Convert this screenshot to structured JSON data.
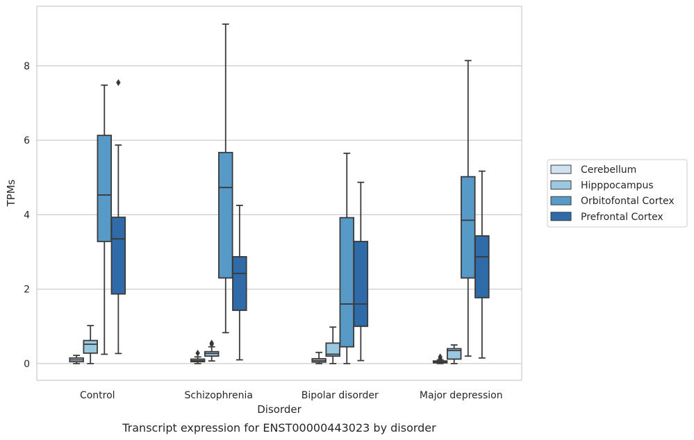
{
  "caption": "Transcript expression for ENST00000443023 by disorder",
  "chart_data": {
    "type": "box",
    "xlabel": "Disorder",
    "ylabel": "TPMs",
    "ylim": [
      -0.45,
      9.6
    ],
    "yticks": [
      0,
      2,
      4,
      6,
      8
    ],
    "grid": "horizontal",
    "legend_position": "right",
    "categories": [
      "Control",
      "Schizophrenia",
      "Bipolar disorder",
      "Major depression"
    ],
    "series": [
      {
        "name": "Cerebellum",
        "color": "#d0e2f2",
        "boxes": [
          {
            "whisker_low": 0.0,
            "q1": 0.05,
            "median": 0.1,
            "q3": 0.15,
            "whisker_high": 0.22,
            "outliers": []
          },
          {
            "whisker_low": 0.0,
            "q1": 0.05,
            "median": 0.08,
            "q3": 0.12,
            "whisker_high": 0.18,
            "outliers": [
              0.28
            ]
          },
          {
            "whisker_low": 0.0,
            "q1": 0.04,
            "median": 0.08,
            "q3": 0.13,
            "whisker_high": 0.3,
            "outliers": []
          },
          {
            "whisker_low": 0.0,
            "q1": 0.02,
            "median": 0.04,
            "q3": 0.07,
            "whisker_high": 0.1,
            "outliers": [
              0.14,
              0.18
            ]
          }
        ]
      },
      {
        "name": "Hipppocampus",
        "color": "#9ac8e0",
        "boxes": [
          {
            "whisker_low": 0.0,
            "q1": 0.28,
            "median": 0.52,
            "q3": 0.62,
            "whisker_high": 1.02,
            "outliers": []
          },
          {
            "whisker_low": 0.07,
            "q1": 0.2,
            "median": 0.27,
            "q3": 0.32,
            "whisker_high": 0.45,
            "outliers": [
              0.52,
              0.55
            ]
          },
          {
            "whisker_low": 0.0,
            "q1": 0.2,
            "median": 0.25,
            "q3": 0.55,
            "whisker_high": 0.98,
            "outliers": []
          },
          {
            "whisker_low": 0.0,
            "q1": 0.12,
            "median": 0.35,
            "q3": 0.4,
            "whisker_high": 0.5,
            "outliers": []
          }
        ]
      },
      {
        "name": "Orbitofontal Cortex",
        "color": "#5799c7",
        "boxes": [
          {
            "whisker_low": 0.25,
            "q1": 3.28,
            "median": 4.53,
            "q3": 6.13,
            "whisker_high": 7.48,
            "outliers": []
          },
          {
            "whisker_low": 0.83,
            "q1": 2.3,
            "median": 4.73,
            "q3": 5.67,
            "whisker_high": 9.12,
            "outliers": []
          },
          {
            "whisker_low": 0.0,
            "q1": 0.45,
            "median": 1.6,
            "q3": 3.92,
            "whisker_high": 5.65,
            "outliers": []
          },
          {
            "whisker_low": 0.2,
            "q1": 2.3,
            "median": 3.85,
            "q3": 5.02,
            "whisker_high": 8.14,
            "outliers": []
          }
        ]
      },
      {
        "name": "Prefrontal Cortex",
        "color": "#2f6ba8",
        "boxes": [
          {
            "whisker_low": 0.27,
            "q1": 1.87,
            "median": 3.35,
            "q3": 3.93,
            "whisker_high": 5.87,
            "outliers": [
              7.55
            ]
          },
          {
            "whisker_low": 0.1,
            "q1": 1.43,
            "median": 2.42,
            "q3": 2.87,
            "whisker_high": 4.25,
            "outliers": []
          },
          {
            "whisker_low": 0.08,
            "q1": 1.0,
            "median": 1.6,
            "q3": 3.28,
            "whisker_high": 4.87,
            "outliers": []
          },
          {
            "whisker_low": 0.15,
            "q1": 1.77,
            "median": 2.87,
            "q3": 3.43,
            "whisker_high": 5.17,
            "outliers": []
          }
        ]
      }
    ]
  }
}
